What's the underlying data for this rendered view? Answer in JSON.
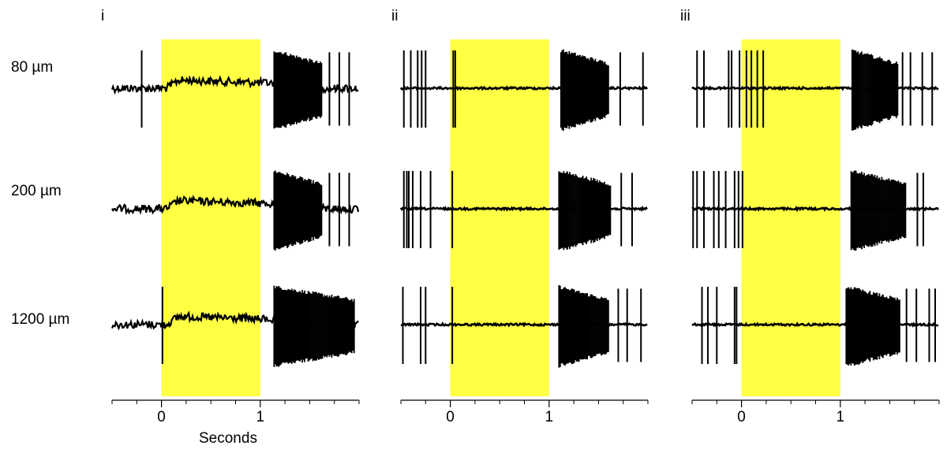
{
  "chart_data": {
    "type": "line",
    "description_free": true,
    "panels": [
      {
        "label": "i",
        "highlight": {
          "start": 0,
          "end": 1,
          "color": "#ffff44"
        },
        "xlim": [
          -0.5,
          2.0
        ],
        "ticks_major": [
          0,
          1
        ],
        "ticks_minor": [
          -0.5,
          -0.25,
          0.25,
          0.5,
          0.75,
          1.25,
          1.5,
          1.75,
          2.0
        ],
        "xlabel": "Seconds",
        "rows": [
          {
            "spikes_before": [
              -0.2
            ],
            "spikes_during": [],
            "burst_start": 1.14,
            "burst_end": 1.62,
            "spikes_after": [
              1.7,
              1.8,
              1.9
            ],
            "depolarized": true
          },
          {
            "spikes_before": [],
            "spikes_during": [],
            "burst_start": 1.14,
            "burst_end": 1.62,
            "spikes_after": [
              1.7,
              1.8,
              1.9
            ],
            "depolarized": true
          },
          {
            "spikes_before": [
              0.01
            ],
            "spikes_during": [],
            "burst_start": 1.14,
            "burst_end": 1.95,
            "spikes_after": [],
            "depolarized": true
          }
        ]
      },
      {
        "label": "ii",
        "highlight": {
          "start": 0,
          "end": 1,
          "color": "#ffff44"
        },
        "xlim": [
          -0.5,
          2.0
        ],
        "ticks_major": [
          0,
          1
        ],
        "ticks_minor": [
          -0.5,
          -0.25,
          0.25,
          0.5,
          0.75,
          1.25,
          1.5,
          1.75,
          2.0
        ],
        "xlabel": "",
        "rows": [
          {
            "spikes_before": [
              -0.47,
              -0.4,
              -0.33,
              -0.29,
              -0.25
            ],
            "spikes_during": [
              0.03,
              0.05
            ],
            "burst_start": 1.12,
            "burst_end": 1.6,
            "spikes_after": [
              1.72,
              1.95
            ],
            "depolarized": false
          },
          {
            "spikes_before": [
              -0.47,
              -0.44,
              -0.42,
              -0.38,
              -0.3,
              -0.2
            ],
            "spikes_during": [
              0.02
            ],
            "burst_start": 1.1,
            "burst_end": 1.62,
            "spikes_after": [
              1.73,
              1.84
            ],
            "depolarized": false
          },
          {
            "spikes_before": [
              -0.48,
              -0.3,
              -0.25
            ],
            "spikes_during": [
              0.02
            ],
            "burst_start": 1.1,
            "burst_end": 1.6,
            "spikes_after": [
              1.7,
              1.79,
              1.93
            ],
            "depolarized": false
          }
        ]
      },
      {
        "label": "iii",
        "highlight": {
          "start": 0,
          "end": 1,
          "color": "#ffff44"
        },
        "xlim": [
          -0.5,
          2.0
        ],
        "ticks_major": [
          0,
          1
        ],
        "ticks_minor": [
          -0.5,
          -0.25,
          0.25,
          0.5,
          0.75,
          1.25,
          1.5,
          1.75,
          2.0
        ],
        "xlabel": "",
        "rows": [
          {
            "spikes_before": [
              -0.45,
              -0.38,
              -0.13,
              -0.1,
              -0.02
            ],
            "spikes_during": [
              0.05,
              0.1,
              0.16,
              0.22
            ],
            "burst_start": 1.12,
            "burst_end": 1.58,
            "spikes_after": [
              1.63,
              1.71,
              1.83,
              1.93
            ],
            "depolarized": false
          },
          {
            "spikes_before": [
              -0.49,
              -0.45,
              -0.38,
              -0.28,
              -0.23,
              -0.16,
              -0.07,
              -0.03
            ],
            "spikes_during": [
              0.01
            ],
            "burst_start": 1.11,
            "burst_end": 1.66,
            "spikes_after": [
              1.78,
              1.84
            ],
            "depolarized": false
          },
          {
            "spikes_before": [
              -0.4,
              -0.34,
              -0.25,
              -0.07,
              -0.05
            ],
            "spikes_during": [],
            "burst_start": 1.06,
            "burst_end": 1.6,
            "spikes_after": [
              1.67,
              1.77,
              1.9,
              1.96
            ],
            "depolarized": false
          }
        ]
      }
    ],
    "row_labels": [
      "80 µm",
      "200 µm",
      "1200 µm"
    ],
    "tick_labels": [
      "0",
      "1"
    ]
  }
}
